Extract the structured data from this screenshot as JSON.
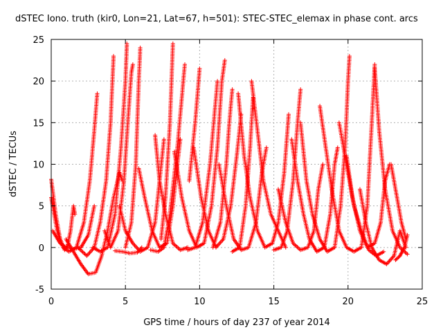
{
  "chart_data": {
    "type": "scatter",
    "title": "dSTEC Iono. truth (kir0, Lon=21, Lat=67, h=501): STEC-STEC_elemax in phase cont. arcs",
    "xlabel": "GPS time / hours of day 237 of year 2014",
    "ylabel": "dSTEC  / TECUs",
    "xlim": [
      0,
      25
    ],
    "ylim": [
      -5,
      25
    ],
    "x_ticks": [
      "0",
      "5",
      "10",
      "15",
      "20",
      "25"
    ],
    "y_ticks": [
      "-5",
      "0",
      "5",
      "10",
      "15",
      "20",
      "25"
    ],
    "grid": true,
    "marker": "+",
    "color": "#ff0000",
    "series": [
      {
        "arc": [
          [
            0.0,
            8.2
          ],
          [
            0.3,
            4
          ],
          [
            0.6,
            1
          ],
          [
            0.9,
            -0.3
          ],
          [
            1.1,
            0.2
          ],
          [
            1.3,
            2
          ],
          [
            1.5,
            5
          ],
          [
            1.6,
            4
          ]
        ]
      },
      {
        "arc": [
          [
            0.0,
            6
          ],
          [
            0.4,
            2
          ],
          [
            0.8,
            0
          ],
          [
            1.2,
            -0.5
          ],
          [
            1.7,
            0
          ],
          [
            2.2,
            3
          ],
          [
            2.6,
            8
          ],
          [
            2.9,
            14
          ],
          [
            3.1,
            18.5
          ]
        ]
      },
      {
        "arc": [
          [
            0.1,
            2
          ],
          [
            0.6,
            0.5
          ],
          [
            1.0,
            0
          ],
          [
            1.5,
            -0.2
          ],
          [
            2.0,
            0
          ],
          [
            2.5,
            1.5
          ],
          [
            2.9,
            5
          ]
        ]
      },
      {
        "arc": [
          [
            1.0,
            1
          ],
          [
            1.5,
            -0.5
          ],
          [
            2.0,
            -2
          ],
          [
            2.5,
            -3.2
          ],
          [
            3.0,
            -3
          ],
          [
            3.4,
            -1
          ],
          [
            3.8,
            2
          ],
          [
            4.2,
            6
          ],
          [
            4.6,
            9
          ],
          [
            4.8,
            8
          ]
        ]
      },
      {
        "arc": [
          [
            1.8,
            0
          ],
          [
            2.4,
            -1
          ],
          [
            2.9,
            0
          ],
          [
            3.3,
            3
          ],
          [
            3.7,
            8
          ],
          [
            4.0,
            15
          ],
          [
            4.2,
            23
          ]
        ]
      },
      {
        "arc": [
          [
            2.8,
            0
          ],
          [
            3.3,
            -0.5
          ],
          [
            3.8,
            0
          ],
          [
            4.3,
            4
          ],
          [
            4.7,
            12
          ],
          [
            5.0,
            20
          ],
          [
            5.1,
            24.5
          ]
        ]
      },
      {
        "arc": [
          [
            3.6,
            2
          ],
          [
            4.0,
            0
          ],
          [
            4.5,
            2
          ],
          [
            4.9,
            8
          ],
          [
            5.2,
            16
          ],
          [
            5.4,
            21
          ],
          [
            5.5,
            22
          ]
        ]
      },
      {
        "arc": [
          [
            4.3,
            -0.4
          ],
          [
            4.8,
            -0.5
          ],
          [
            5.3,
            -0.7
          ],
          [
            5.8,
            -0.6
          ],
          [
            6.1,
            0
          ]
        ]
      },
      {
        "arc": [
          [
            4.6,
            5
          ],
          [
            5.0,
            2
          ],
          [
            5.5,
            0.5
          ],
          [
            6.0,
            -0.5
          ],
          [
            6.5,
            0
          ],
          [
            7.0,
            3
          ],
          [
            7.3,
            8
          ],
          [
            7.6,
            13
          ]
        ]
      },
      {
        "arc": [
          [
            5.0,
            0
          ],
          [
            5.4,
            3
          ],
          [
            5.7,
            10
          ],
          [
            5.9,
            20
          ],
          [
            6.0,
            24
          ]
        ]
      },
      {
        "arc": [
          [
            5.9,
            9.5
          ],
          [
            6.3,
            6
          ],
          [
            6.8,
            2
          ],
          [
            7.3,
            0
          ],
          [
            7.8,
            0.5
          ],
          [
            8.2,
            5
          ],
          [
            8.5,
            10
          ],
          [
            8.7,
            13
          ]
        ]
      },
      {
        "arc": [
          [
            6.7,
            -0.3
          ],
          [
            7.2,
            -0.5
          ],
          [
            7.6,
            0
          ],
          [
            8.0,
            4
          ],
          [
            8.5,
            12
          ],
          [
            8.8,
            18
          ],
          [
            9.0,
            22
          ]
        ]
      },
      {
        "arc": [
          [
            7.0,
            13.5
          ],
          [
            7.3,
            8
          ],
          [
            7.7,
            4
          ],
          [
            8.2,
            0.5
          ],
          [
            8.7,
            -0.3
          ],
          [
            9.2,
            0
          ]
        ]
      },
      {
        "arc": [
          [
            7.4,
            1
          ],
          [
            7.7,
            6
          ],
          [
            8.0,
            15
          ],
          [
            8.2,
            24.5
          ]
        ]
      },
      {
        "arc": [
          [
            8.3,
            11.5
          ],
          [
            8.8,
            6
          ],
          [
            9.3,
            2
          ],
          [
            9.8,
            0
          ],
          [
            10.3,
            0.5
          ],
          [
            10.8,
            5
          ],
          [
            11.2,
            12
          ],
          [
            11.5,
            20
          ],
          [
            11.7,
            22.5
          ]
        ]
      },
      {
        "arc": [
          [
            9.2,
            -0.3
          ],
          [
            9.7,
            0
          ],
          [
            10.2,
            3
          ],
          [
            10.7,
            10
          ],
          [
            11.0,
            16
          ],
          [
            11.2,
            20
          ]
        ]
      },
      {
        "arc": [
          [
            9.6,
            12
          ],
          [
            10.1,
            6
          ],
          [
            10.6,
            2
          ],
          [
            11.1,
            0
          ],
          [
            11.6,
            1
          ],
          [
            12.1,
            5
          ],
          [
            12.5,
            11
          ],
          [
            12.8,
            16
          ]
        ]
      },
      {
        "arc": [
          [
            10.0,
            21.5
          ],
          [
            9.7,
            15
          ],
          [
            9.3,
            8
          ]
        ]
      },
      {
        "arc": [
          [
            10.9,
            0
          ],
          [
            11.4,
            3
          ],
          [
            11.8,
            10
          ],
          [
            12.0,
            15
          ],
          [
            12.2,
            19
          ]
        ]
      },
      {
        "arc": [
          [
            11.3,
            10
          ],
          [
            11.8,
            5
          ],
          [
            12.3,
            1
          ],
          [
            12.8,
            -0.3
          ],
          [
            13.3,
            0
          ],
          [
            13.8,
            3
          ],
          [
            14.2,
            9
          ],
          [
            14.5,
            12
          ]
        ]
      },
      {
        "arc": [
          [
            12.2,
            -0.5
          ],
          [
            12.7,
            0
          ],
          [
            13.1,
            5
          ],
          [
            13.4,
            12
          ],
          [
            13.6,
            18
          ]
        ]
      },
      {
        "arc": [
          [
            12.6,
            18.5
          ],
          [
            13.0,
            11
          ],
          [
            13.4,
            6
          ],
          [
            13.9,
            2
          ],
          [
            14.4,
            0
          ],
          [
            14.9,
            0.5
          ],
          [
            15.3,
            3
          ],
          [
            15.7,
            9
          ],
          [
            16.0,
            16
          ]
        ]
      },
      {
        "arc": [
          [
            13.5,
            20
          ],
          [
            13.9,
            14
          ],
          [
            14.3,
            8
          ],
          [
            14.8,
            4
          ],
          [
            15.3,
            2
          ],
          [
            15.8,
            0
          ]
        ]
      },
      {
        "arc": [
          [
            15.0,
            -0.3
          ],
          [
            15.5,
            0
          ],
          [
            15.9,
            2
          ],
          [
            16.3,
            8
          ],
          [
            16.6,
            15
          ],
          [
            16.8,
            19
          ]
        ]
      },
      {
        "arc": [
          [
            15.3,
            7
          ],
          [
            15.8,
            3
          ],
          [
            16.3,
            0.5
          ],
          [
            16.8,
            -0.3
          ],
          [
            17.3,
            0
          ],
          [
            17.7,
            2
          ],
          [
            18.0,
            7
          ],
          [
            18.3,
            10
          ]
        ]
      },
      {
        "arc": [
          [
            16.2,
            13
          ],
          [
            16.6,
            8
          ],
          [
            17.0,
            4
          ],
          [
            17.4,
            1
          ],
          [
            17.9,
            -0.5
          ],
          [
            18.4,
            0
          ],
          [
            18.8,
            4
          ],
          [
            19.1,
            10
          ],
          [
            19.3,
            12
          ]
        ]
      },
      {
        "arc": [
          [
            16.8,
            15
          ],
          [
            17.2,
            8
          ],
          [
            17.6,
            4
          ],
          [
            18.1,
            1
          ],
          [
            18.6,
            -0.5
          ],
          [
            19.1,
            0
          ],
          [
            19.5,
            5
          ],
          [
            19.8,
            12
          ],
          [
            20.0,
            20
          ],
          [
            20.1,
            23
          ]
        ]
      },
      {
        "arc": [
          [
            18.1,
            17
          ],
          [
            18.5,
            12
          ],
          [
            18.9,
            7
          ],
          [
            19.4,
            2
          ],
          [
            19.9,
            0
          ],
          [
            20.4,
            -0.5
          ],
          [
            20.9,
            0
          ],
          [
            21.3,
            5
          ],
          [
            21.6,
            15
          ],
          [
            21.8,
            22
          ]
        ]
      },
      {
        "arc": [
          [
            19.4,
            15
          ],
          [
            19.9,
            10
          ],
          [
            20.4,
            5
          ],
          [
            20.9,
            2
          ],
          [
            21.4,
            -0.3
          ],
          [
            21.9,
            -1
          ],
          [
            22.4,
            -0.5
          ]
        ]
      },
      {
        "arc": [
          [
            19.9,
            11
          ],
          [
            20.3,
            6
          ],
          [
            20.8,
            2
          ],
          [
            21.3,
            0
          ],
          [
            21.8,
            0.5
          ],
          [
            22.2,
            3
          ],
          [
            22.5,
            8
          ],
          [
            22.8,
            10
          ]
        ]
      },
      {
        "arc": [
          [
            20.8,
            7
          ],
          [
            21.2,
            3
          ],
          [
            21.6,
            0
          ],
          [
            22.1,
            -1.5
          ],
          [
            22.6,
            -2
          ],
          [
            23.1,
            -1
          ],
          [
            23.5,
            2
          ],
          [
            23.9,
            0
          ]
        ]
      },
      {
        "arc": [
          [
            21.8,
            21.5
          ],
          [
            22.1,
            14
          ],
          [
            22.5,
            7
          ],
          [
            23.0,
            2
          ],
          [
            23.5,
            0
          ],
          [
            24.0,
            -0.8
          ]
        ]
      },
      {
        "arc": [
          [
            22.9,
            10
          ],
          [
            23.3,
            6
          ],
          [
            23.6,
            3
          ],
          [
            23.9,
            1
          ]
        ]
      },
      {
        "arc": [
          [
            23.2,
            -1.5
          ],
          [
            23.5,
            -1
          ],
          [
            23.8,
            0
          ],
          [
            24.0,
            1.5
          ]
        ]
      }
    ]
  }
}
